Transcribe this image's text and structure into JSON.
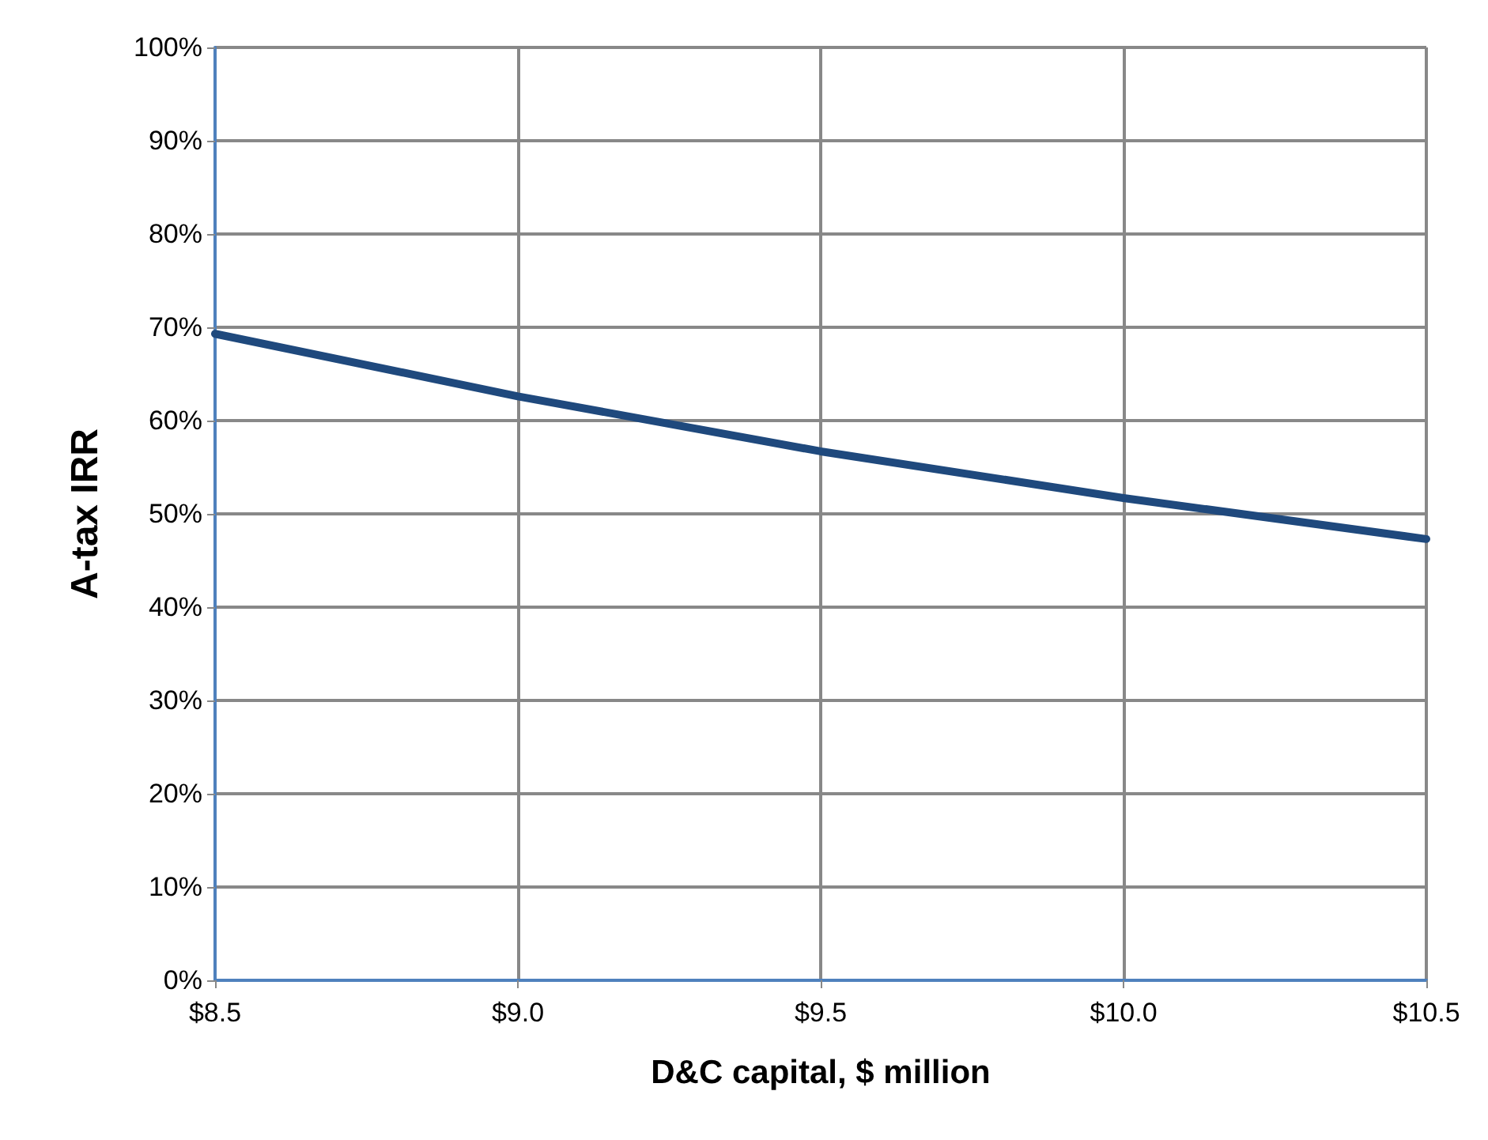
{
  "chart_data": {
    "type": "line",
    "xlabel": "D&C capital, $ million",
    "ylabel": "A-tax IRR",
    "x": [
      8.5,
      9.0,
      9.5,
      10.0,
      10.5
    ],
    "series": [
      {
        "color": "#1f497d",
        "values": [
          69.3,
          62.6,
          56.7,
          51.7,
          47.3
        ]
      }
    ],
    "xlim": [
      8.5,
      10.5
    ],
    "xticks": [
      {
        "value": 8.5,
        "label": "$8.5"
      },
      {
        "value": 9.0,
        "label": "$9.0"
      },
      {
        "value": 9.5,
        "label": "$9.5"
      },
      {
        "value": 10.0,
        "label": "$10.0"
      },
      {
        "value": 10.5,
        "label": "$10.5"
      }
    ],
    "ylim": [
      0,
      100
    ],
    "yticks": [
      {
        "value": 0,
        "label": "0%"
      },
      {
        "value": 10,
        "label": "10%"
      },
      {
        "value": 20,
        "label": "20%"
      },
      {
        "value": 30,
        "label": "30%"
      },
      {
        "value": 40,
        "label": "40%"
      },
      {
        "value": 50,
        "label": "50%"
      },
      {
        "value": 60,
        "label": "60%"
      },
      {
        "value": 70,
        "label": "70%"
      },
      {
        "value": 80,
        "label": "80%"
      },
      {
        "value": 90,
        "label": "90%"
      },
      {
        "value": 100,
        "label": "100%"
      }
    ],
    "grid": true,
    "marker": "none",
    "line_style": "solid"
  }
}
